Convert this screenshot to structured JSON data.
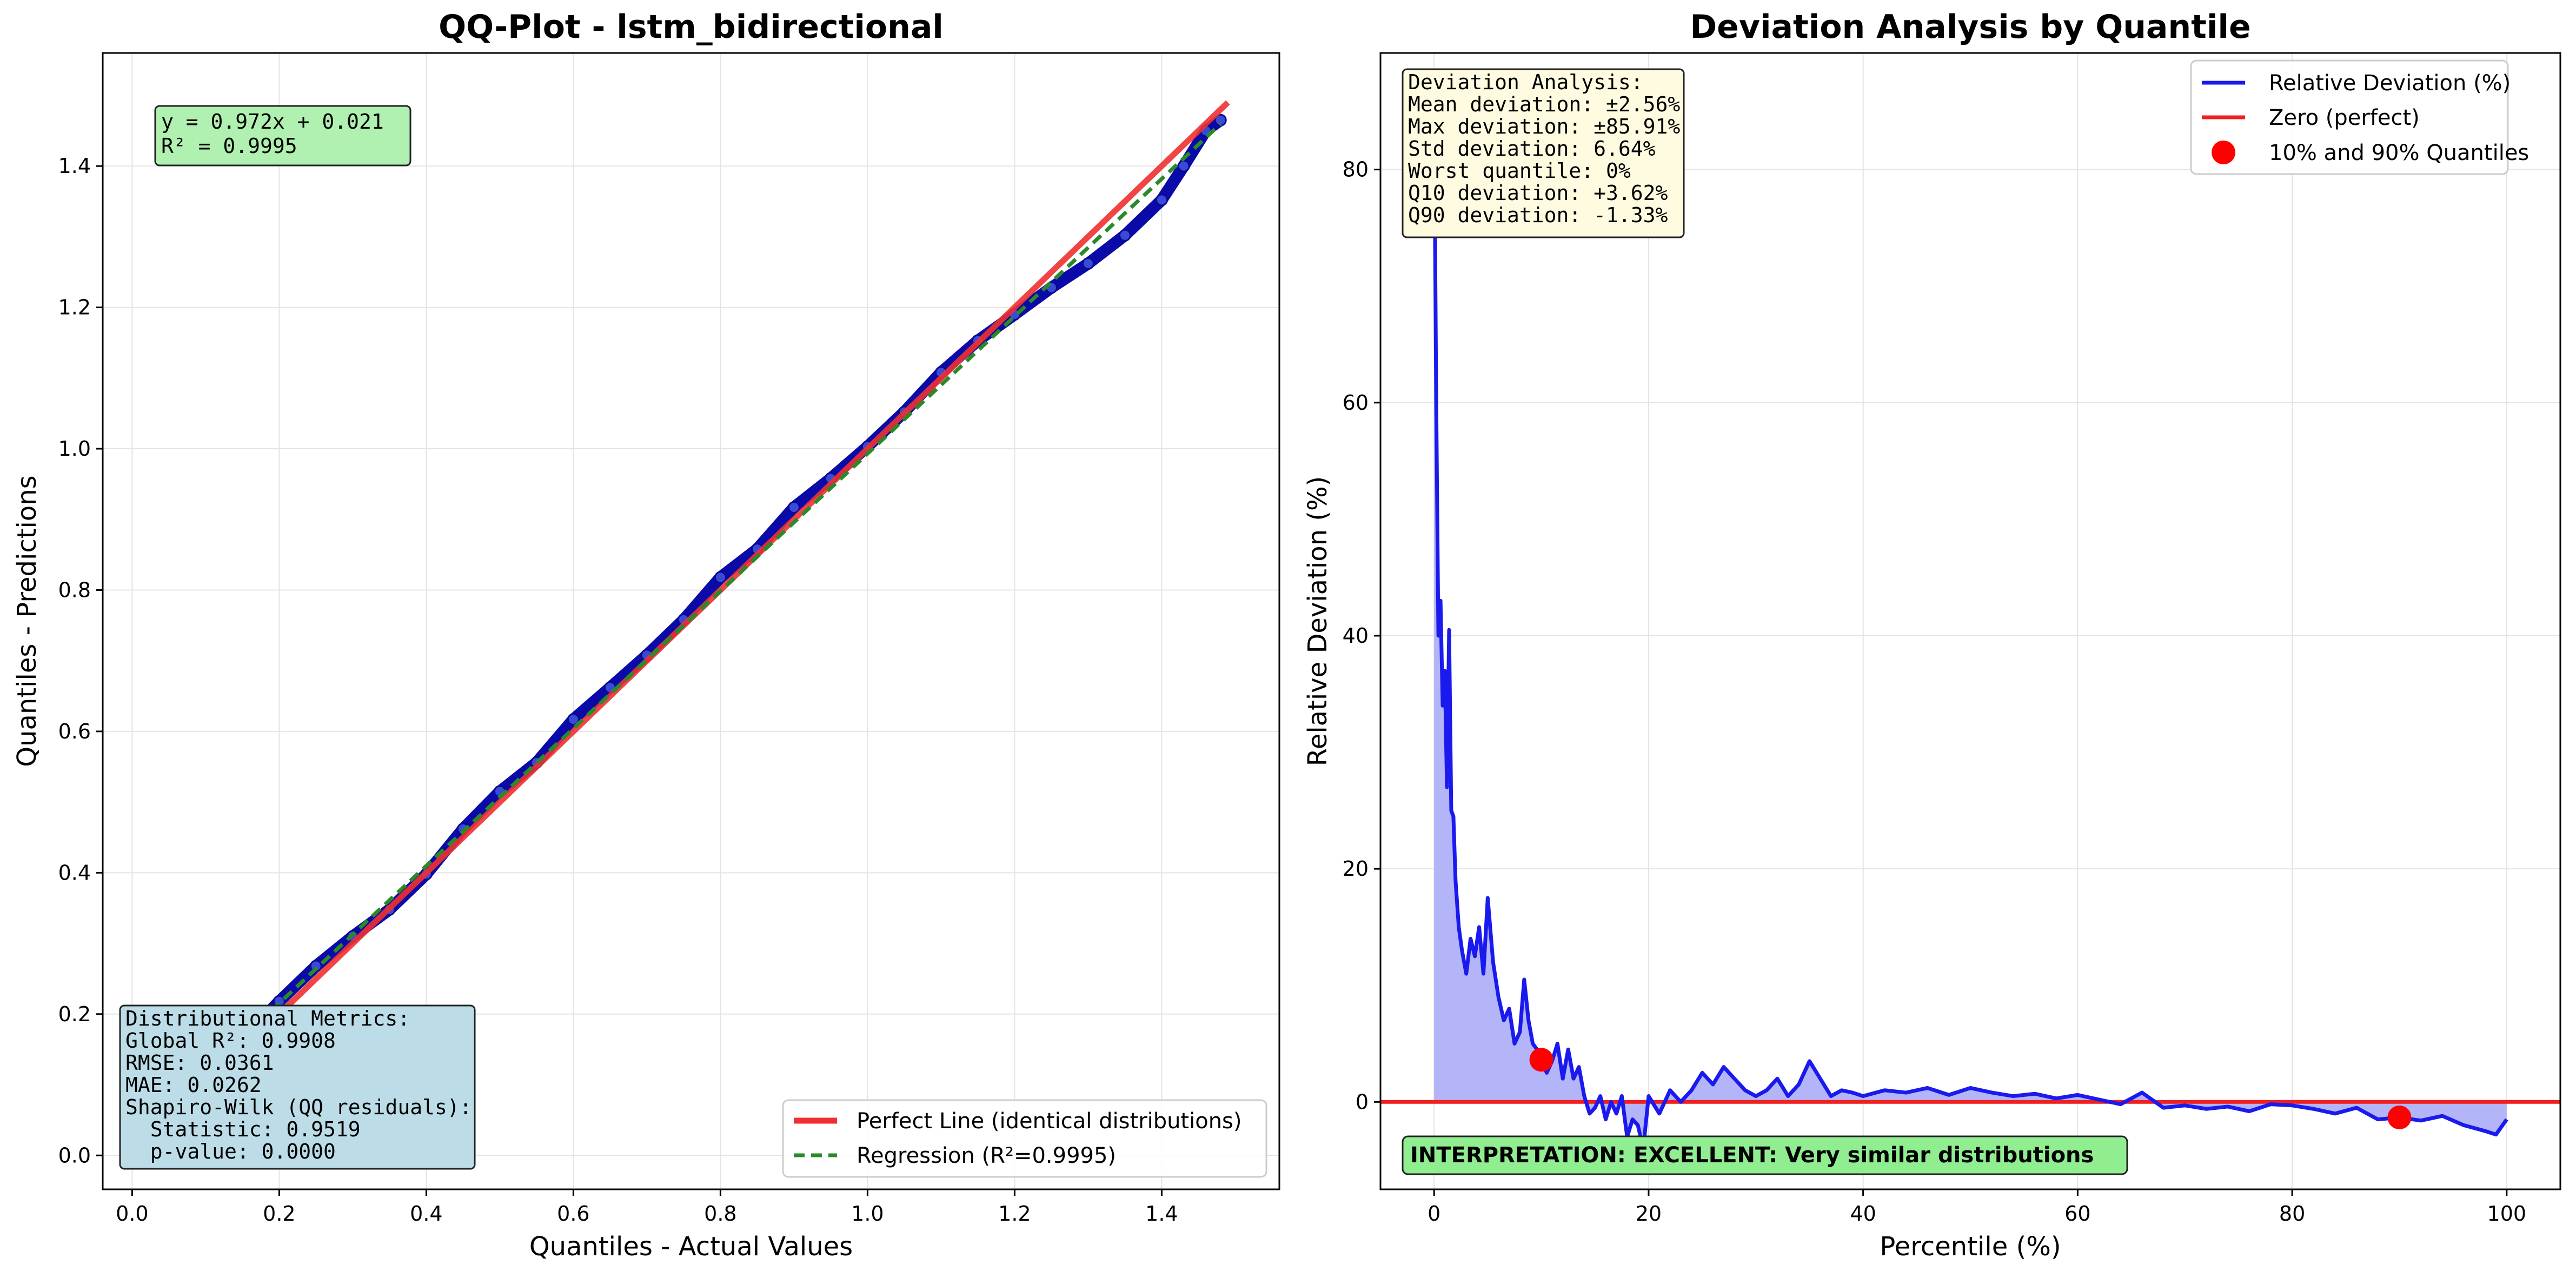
{
  "chart_data": [
    {
      "type": "scatter",
      "title": "QQ-Plot - lstm_bidirectional",
      "xlabel": "Quantiles - Actual Values",
      "ylabel": "Quantiles - Predictions",
      "xlim": [
        -0.04,
        1.56
      ],
      "ylim": [
        -0.048,
        1.56
      ],
      "grid": true,
      "x_ticks": [
        "0.0",
        "0.2",
        "0.4",
        "0.6",
        "0.8",
        "1.0",
        "1.2",
        "1.4"
      ],
      "y_ticks": [
        "0.0",
        "0.2",
        "0.4",
        "0.6",
        "0.8",
        "1.0",
        "1.2",
        "1.4"
      ],
      "series": [
        {
          "name": "",
          "kind": "scatter",
          "color": "#1010cc",
          "x": [
            0.1,
            0.15,
            0.2,
            0.25,
            0.3,
            0.35,
            0.4,
            0.45,
            0.5,
            0.55,
            0.6,
            0.65,
            0.7,
            0.75,
            0.8,
            0.85,
            0.9,
            0.95,
            1.0,
            1.05,
            1.1,
            1.15,
            1.2,
            1.25,
            1.3,
            1.35,
            1.4,
            1.43,
            1.46,
            1.48
          ],
          "y": [
            0.115,
            0.165,
            0.218,
            0.268,
            0.31,
            0.348,
            0.398,
            0.462,
            0.515,
            0.556,
            0.617,
            0.662,
            0.708,
            0.758,
            0.818,
            0.858,
            0.917,
            0.958,
            1.003,
            1.052,
            1.108,
            1.153,
            1.19,
            1.228,
            1.262,
            1.302,
            1.352,
            1.4,
            1.45,
            1.465
          ]
        },
        {
          "name": "Perfect Line (identical distributions)",
          "kind": "line",
          "color": "#f03030",
          "x": [
            0.0,
            1.49
          ],
          "y": [
            0.0,
            1.49
          ]
        },
        {
          "name": "Regression (R²=0.9995)",
          "kind": "dashed-line",
          "color": "#2a8a2a",
          "x": [
            0.0,
            1.48
          ],
          "y": [
            0.021,
            1.4596
          ]
        }
      ],
      "legend": {
        "position": "lower-right",
        "entries": [
          "Perfect Line (identical distributions)",
          "Regression (R²=0.9995)"
        ]
      },
      "annotations": {
        "equation": [
          "y = 0.972x + 0.021",
          "R² = 0.9995"
        ],
        "metrics": [
          "Distributional Metrics:",
          "Global R²: 0.9908",
          "RMSE: 0.0361",
          "MAE: 0.0262",
          "Shapiro-Wilk (QQ residuals):",
          "  Statistic: 0.9519",
          "  p-value: 0.0000"
        ]
      },
      "colors": {
        "equation_box": "#b0f0b0",
        "metrics_box": "#bcdde8"
      }
    },
    {
      "type": "line",
      "title": "Deviation Analysis by Quantile",
      "xlabel": "Percentile (%)",
      "ylabel": "Relative Deviation (%)",
      "xlim": [
        -5,
        105
      ],
      "ylim": [
        -7.5,
        90
      ],
      "grid": true,
      "x_ticks": [
        "0",
        "20",
        "40",
        "60",
        "80",
        "100"
      ],
      "y_ticks": [
        "0",
        "20",
        "40",
        "60",
        "80"
      ],
      "series": [
        {
          "name": "Relative Deviation (%)",
          "kind": "line-filled",
          "color": "#1a1aee",
          "fill": "#b0b0f8",
          "x": [
            0,
            0.2,
            0.4,
            0.6,
            0.8,
            1.0,
            1.2,
            1.4,
            1.6,
            1.8,
            2.0,
            2.3,
            2.6,
            3.0,
            3.4,
            3.8,
            4.2,
            4.6,
            5.0,
            5.5,
            6.0,
            6.5,
            7.0,
            7.5,
            8.0,
            8.4,
            8.8,
            9.2,
            9.6,
            10.0,
            10.5,
            11.0,
            11.5,
            12.0,
            12.5,
            13.0,
            13.5,
            14.0,
            14.5,
            15.0,
            15.5,
            16.0,
            16.5,
            17.0,
            17.5,
            18.0,
            18.5,
            19.0,
            19.5,
            20.0,
            21.0,
            22.0,
            23.0,
            24.0,
            25.0,
            26.0,
            27.0,
            28.0,
            29.0,
            30.0,
            31.0,
            32.0,
            33.0,
            34.0,
            35.0,
            36.0,
            37.0,
            38.0,
            39.0,
            40.0,
            42.0,
            44.0,
            46.0,
            48.0,
            50.0,
            52.0,
            54.0,
            56.0,
            58.0,
            60.0,
            62.0,
            64.0,
            66.0,
            68.0,
            70.0,
            72.0,
            74.0,
            76.0,
            78.0,
            80.0,
            82.0,
            84.0,
            86.0,
            88.0,
            90.0,
            92.0,
            94.0,
            96.0,
            98.0,
            99.0,
            100.0
          ],
          "y": [
            85.91,
            60,
            40,
            43,
            34,
            37,
            27,
            40.5,
            25,
            24.5,
            19,
            15,
            13,
            11,
            14,
            12.5,
            15,
            11,
            17.5,
            12,
            9,
            7,
            8,
            5,
            6,
            10.5,
            7,
            5,
            4.5,
            3.62,
            2.5,
            3.5,
            5,
            2,
            4.5,
            2,
            3,
            0.5,
            -1,
            -0.5,
            0.5,
            -1.5,
            0,
            -1,
            0.5,
            -3,
            -1.5,
            -2,
            -4,
            0.5,
            -1,
            1,
            0,
            1,
            2.5,
            1.5,
            3,
            2,
            1,
            0.5,
            1,
            2,
            0.5,
            1.5,
            3.5,
            2,
            0.5,
            1,
            0.8,
            0.5,
            1,
            0.8,
            1.2,
            0.6,
            1.2,
            0.8,
            0.5,
            0.7,
            0.3,
            0.6,
            0.2,
            -0.2,
            0.8,
            -0.5,
            -0.3,
            -0.6,
            -0.4,
            -0.8,
            -0.2,
            -0.3,
            -0.6,
            -1,
            -0.5,
            -1.5,
            -1.33,
            -1.6,
            -1.2,
            -2,
            -2.5,
            -2.8,
            -1.5
          ]
        },
        {
          "name": "Zero (perfect)",
          "kind": "hline",
          "color": "#f02020",
          "y": 0
        },
        {
          "name": "10% and 90% Quantiles",
          "kind": "markers",
          "color": "#ff0000",
          "x": [
            10,
            90
          ],
          "y": [
            3.62,
            -1.33
          ]
        }
      ],
      "legend": {
        "position": "top-right",
        "entries": [
          "Relative Deviation (%)",
          "Zero (perfect)",
          "10% and 90% Quantiles"
        ]
      },
      "annotations": {
        "deviation": [
          "Deviation Analysis:",
          "Mean deviation: ±2.56%",
          "Max deviation: ±85.91%",
          "Std deviation: 6.64%",
          "Worst quantile: 0%",
          "Q10 deviation: +3.62%",
          "Q90 deviation: -1.33%"
        ],
        "interpretation": "INTERPRETATION: EXCELLENT: Very similar distributions"
      },
      "colors": {
        "deviation_box": "#fffbe0",
        "interpretation_box": "#90ee90"
      }
    }
  ]
}
